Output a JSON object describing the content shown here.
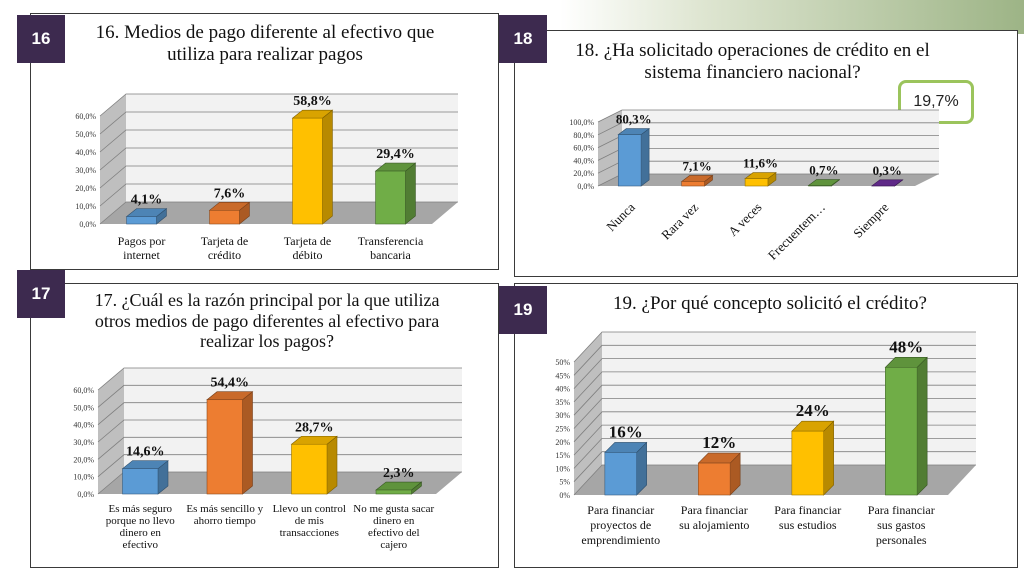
{
  "badges": [
    "16",
    "17",
    "18",
    "19"
  ],
  "callout_18": "19,7%",
  "colors": {
    "blue": "#5b9bd5",
    "orange": "#ed7d31",
    "yellow": "#ffc000",
    "green": "#70ad47",
    "purple": "#7030a0",
    "badge": "#3d2a4f"
  },
  "chart_data": [
    {
      "id": "16",
      "type": "bar",
      "title": "16. Medios de pago diferente al efectivo que utiliza para realizar pagos",
      "categories": [
        "Pagos por internet",
        "Tarjeta de crédito",
        "Tarjeta de débito",
        "Transferencia bancaria"
      ],
      "values": [
        4.1,
        7.6,
        58.8,
        29.4
      ],
      "value_labels": [
        "4,1%",
        "7,6%",
        "58,8%",
        "29,4%"
      ],
      "bar_colors": [
        "#5b9bd5",
        "#ed7d31",
        "#ffc000",
        "#70ad47"
      ],
      "yticks": [
        "0,0%",
        "10,0%",
        "20,0%",
        "30,0%",
        "40,0%",
        "50,0%",
        "60,0%"
      ],
      "ylim": [
        0,
        60
      ],
      "grid": true
    },
    {
      "id": "17",
      "type": "bar",
      "title": "17. ¿Cuál es la razón principal por la que utiliza otros medios de pago diferentes al efectivo para realizar los pagos?",
      "categories": [
        "Es más seguro porque no llevo dinero en efectivo",
        "Es más sencillo y ahorro tiempo",
        "Llevo un control de mis transacciones",
        "No me gusta sacar dinero en efectivo del cajero"
      ],
      "values": [
        14.6,
        54.4,
        28.7,
        2.3
      ],
      "value_labels": [
        "14,6%",
        "54,4%",
        "28,7%",
        "2,3%"
      ],
      "bar_colors": [
        "#5b9bd5",
        "#ed7d31",
        "#ffc000",
        "#70ad47"
      ],
      "yticks": [
        "0,0%",
        "10,0%",
        "20,0%",
        "30,0%",
        "40,0%",
        "50,0%",
        "60,0%"
      ],
      "ylim": [
        0,
        60
      ],
      "grid": true
    },
    {
      "id": "18",
      "type": "bar",
      "title": "18. ¿Ha solicitado operaciones de crédito en el sistema financiero nacional?",
      "categories": [
        "Nunca",
        "Rara vez",
        "A veces",
        "Frecuentem…",
        "Siempre"
      ],
      "values": [
        80.3,
        7.1,
        11.6,
        0.7,
        0.3
      ],
      "value_labels": [
        "80,3%",
        "7,1%",
        "11,6%",
        "0,7%",
        "0,3%"
      ],
      "bar_colors": [
        "#5b9bd5",
        "#ed7d31",
        "#ffc000",
        "#70ad47",
        "#7030a0"
      ],
      "yticks": [
        "0,0%",
        "20,0%",
        "40,0%",
        "60,0%",
        "80,0%",
        "100,0%"
      ],
      "ylim": [
        0,
        100
      ],
      "grid": true
    },
    {
      "id": "19",
      "type": "bar",
      "title": "19. ¿Por qué concepto solicitó el crédito?",
      "categories": [
        "Para financiar proyectos de emprendimiento",
        "Para financiar su alojamiento",
        "Para financiar sus estudios",
        "Para financiar sus gastos personales"
      ],
      "values": [
        16,
        12,
        24,
        48
      ],
      "value_labels": [
        "16%",
        "12%",
        "24%",
        "48%"
      ],
      "bar_colors": [
        "#5b9bd5",
        "#ed7d31",
        "#ffc000",
        "#70ad47"
      ],
      "yticks": [
        "0%",
        "5%",
        "10%",
        "15%",
        "20%",
        "25%",
        "30%",
        "35%",
        "40%",
        "45%",
        "50%"
      ],
      "ylim": [
        0,
        50
      ],
      "grid": true
    }
  ]
}
